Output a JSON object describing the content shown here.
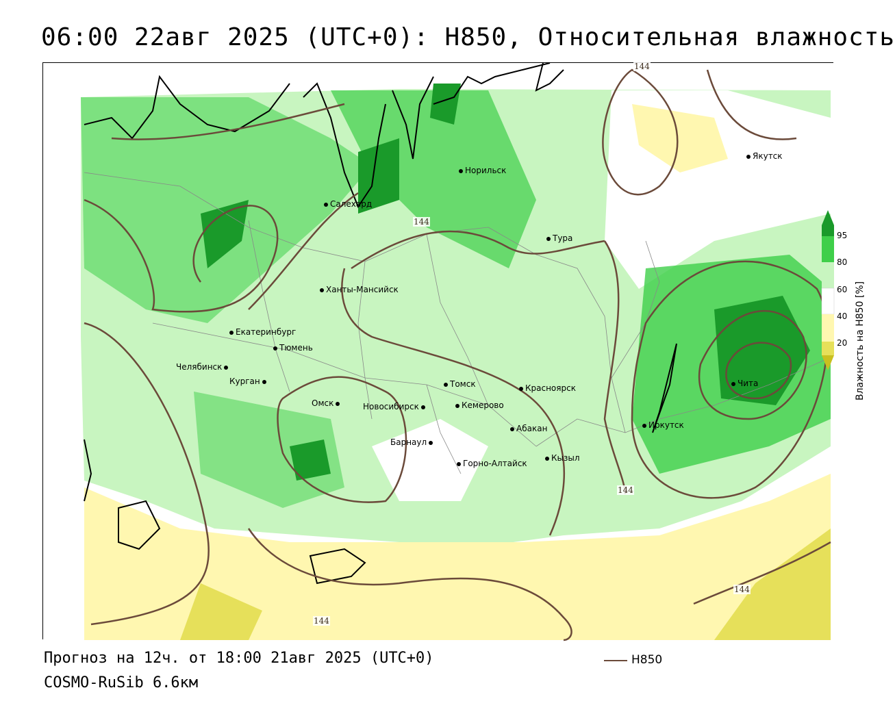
{
  "title": "06:00 22авг 2025 (UTC+0): H850, Относительная влажность",
  "forecast": "Прогноз на 12ч. от 18:00 21авг 2025 (UTC+0)",
  "model": "COSMO-RuSib 6.6км",
  "legend": {
    "line_label": "H850",
    "line_color": "#6b4a3a"
  },
  "colorbar": {
    "title": "Влажность на H850 [%]",
    "ticks": [
      "95",
      "80",
      "60",
      "40",
      "20"
    ],
    "colors": {
      "dark_green": "#1a9a2a",
      "green": "#3fcf4a",
      "light_green": "#c8f5c0",
      "white": "#ffffff",
      "pale_yellow": "#fff7b0",
      "yellow": "#e6e05a",
      "contour": "#6b4a3a"
    }
  },
  "contour_label": "144",
  "cities": [
    "Якутск",
    "Норильск",
    "Салехард",
    "Тура",
    "Ханты-Мансийск",
    "Екатеринбург",
    "Тюмень",
    "Челябинск",
    "Курган",
    "Омск",
    "Новосибирск",
    "Томск",
    "Красноярск",
    "Кемерово",
    "Абакан",
    "Иркутск",
    "Чита",
    "Барнаул",
    "Горно-Алтайск",
    "Кызыл"
  ]
}
